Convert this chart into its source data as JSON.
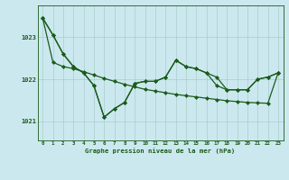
{
  "title": "Graphe pression niveau de la mer (hPa)",
  "xlabel_ticks": [
    0,
    1,
    2,
    3,
    4,
    5,
    6,
    7,
    8,
    9,
    10,
    11,
    12,
    13,
    14,
    15,
    16,
    17,
    18,
    19,
    20,
    21,
    22,
    23
  ],
  "yticks": [
    1021,
    1022,
    1023
  ],
  "ylim": [
    1020.55,
    1023.75
  ],
  "xlim": [
    -0.5,
    23.5
  ],
  "bg_color": "#cce8ef",
  "grid_color": "#aacccc",
  "line_color": "#1a5c1a",
  "line1_y": [
    1023.45,
    1023.05,
    1022.6,
    1022.3,
    1022.15,
    1021.85,
    1021.1,
    1021.3,
    1021.45,
    1021.9,
    1021.95,
    1021.95,
    1022.05,
    1022.45,
    1022.3,
    1022.25,
    1022.15,
    1021.85,
    1021.75,
    1021.75,
    1021.75,
    1022.0,
    1022.05,
    1022.15
  ],
  "line2_y": [
    1023.45,
    1023.05,
    1022.6,
    1022.3,
    1022.15,
    1021.85,
    1021.1,
    1021.3,
    1021.45,
    1021.9,
    1021.95,
    1021.95,
    1022.05,
    1022.45,
    1022.3,
    1022.25,
    1022.15,
    1022.05,
    1021.75,
    1021.75,
    1021.75,
    1022.0,
    1022.05,
    1022.15
  ],
  "line3_y": [
    1023.45,
    1022.4,
    1022.3,
    1022.25,
    1022.18,
    1022.1,
    1022.02,
    1021.95,
    1021.88,
    1021.82,
    1021.76,
    1021.72,
    1021.68,
    1021.64,
    1021.61,
    1021.58,
    1021.55,
    1021.52,
    1021.49,
    1021.47,
    1021.45,
    1021.44,
    1021.43,
    1022.15
  ],
  "marker": "D",
  "marker_size": 2.0,
  "linewidth": 0.9
}
